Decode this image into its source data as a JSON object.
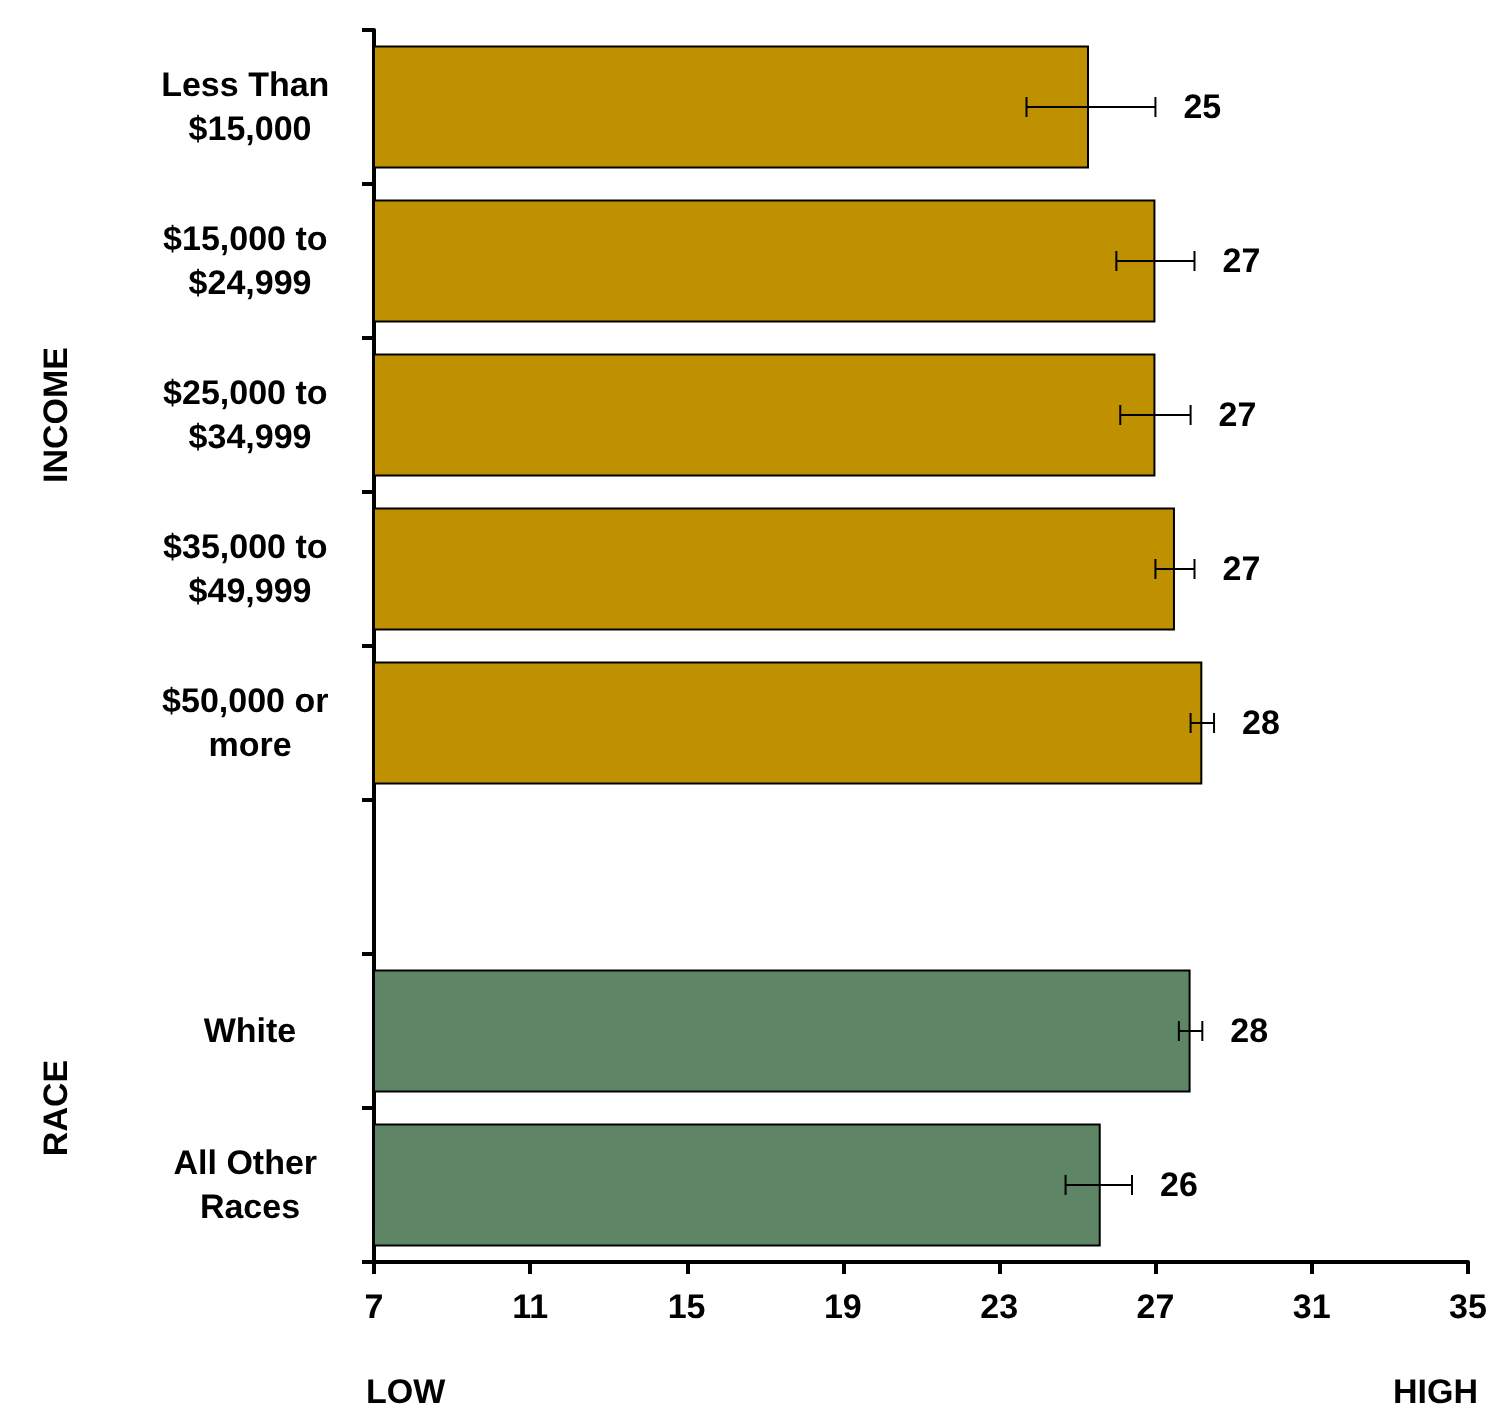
{
  "chart_data": {
    "type": "bar",
    "orientation": "horizontal",
    "categories": [
      "Less Than $15,000",
      "$15,000 to $24,999",
      "$25,000 to $34,999",
      "$35,000 to $49,999",
      "$50,000 or more",
      null,
      "White",
      "All Other Races"
    ],
    "values": [
      25.3,
      27.0,
      27.0,
      27.5,
      28.2,
      null,
      27.9,
      25.6
    ],
    "colors": [
      "#bf9000",
      "#bf9000",
      "#bf9000",
      "#bf9000",
      "#bf9000",
      null,
      "#5e8566",
      "#5e8566"
    ],
    "errors": [
      [
        23.7,
        27.0
      ],
      [
        26.0,
        28.0
      ],
      [
        26.1,
        27.9
      ],
      [
        27.0,
        28.0
      ],
      [
        27.9,
        28.5
      ],
      null,
      [
        27.6,
        28.2
      ],
      [
        24.7,
        26.4
      ]
    ],
    "value_labels": [
      "25",
      "27",
      "27",
      "27",
      "28",
      null,
      "28",
      "26"
    ],
    "xlim": [
      7,
      35
    ],
    "xticks": [
      7,
      11,
      15,
      19,
      23,
      27,
      31,
      35
    ],
    "annotations": [
      "INCOME",
      "RACE",
      "LOW",
      "HIGH"
    ]
  }
}
